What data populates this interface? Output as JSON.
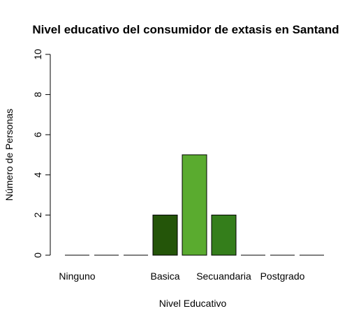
{
  "chart_data": {
    "type": "bar",
    "title": "Nivel educativo del consumidor de extasis en Santand",
    "xlabel": "Nivel Educativo",
    "ylabel": "Número de Personas",
    "ylim": [
      0,
      10
    ],
    "yticks": [
      0,
      2,
      4,
      6,
      8,
      10
    ],
    "grid": false,
    "legend": "none",
    "categories": [
      "Ninguno",
      "",
      "",
      "Basica",
      "",
      "Secuandaria",
      "",
      "Postgrado",
      ""
    ],
    "values": [
      0,
      0,
      0,
      2,
      5,
      2,
      0,
      0,
      0
    ],
    "colors": [
      "#2b2b2b",
      "#2b2b2b",
      "#2b2b2b",
      "#245509",
      "#5aab2f",
      "#347e1b",
      "#2b2b2b",
      "#2b2b2b",
      "#2b2b2b"
    ]
  }
}
